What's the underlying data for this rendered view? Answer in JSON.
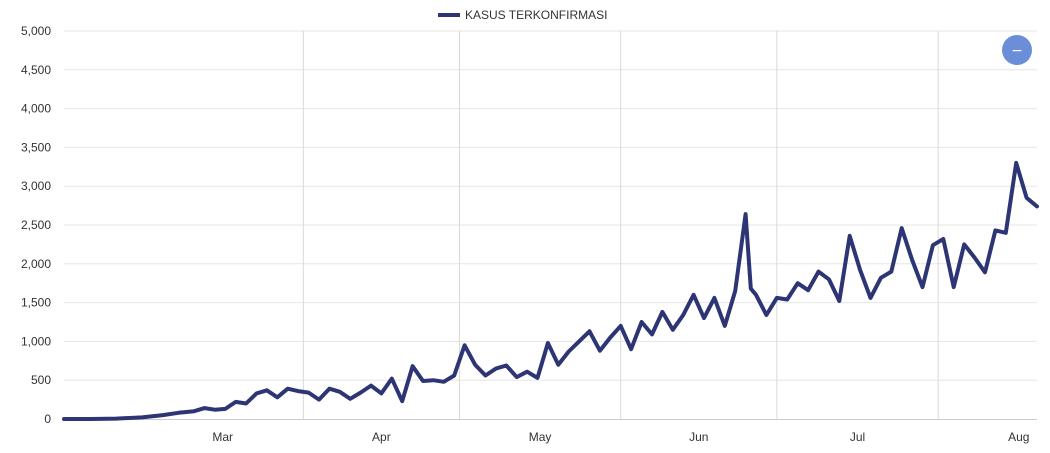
{
  "chart_data": {
    "type": "line",
    "legend": {
      "placement": "top-center",
      "entries": [
        "KASUS TERKONFIRMASI"
      ]
    },
    "series": [
      {
        "name": "KASUS TERKONFIRMASI",
        "color": "#2d3575",
        "x": [
          "2020-02-15",
          "2020-02-20",
          "2020-02-25",
          "2020-03-01",
          "2020-03-05",
          "2020-03-08",
          "2020-03-11",
          "2020-03-13",
          "2020-03-15",
          "2020-03-17",
          "2020-03-19",
          "2020-03-21",
          "2020-03-23",
          "2020-03-25",
          "2020-03-27",
          "2020-03-29",
          "2020-03-31",
          "2020-04-02",
          "2020-04-04",
          "2020-04-06",
          "2020-04-08",
          "2020-04-10",
          "2020-04-12",
          "2020-04-14",
          "2020-04-16",
          "2020-04-18",
          "2020-04-20",
          "2020-04-22",
          "2020-04-24",
          "2020-04-26",
          "2020-04-28",
          "2020-04-30",
          "2020-05-02",
          "2020-05-04",
          "2020-05-06",
          "2020-05-08",
          "2020-05-10",
          "2020-05-12",
          "2020-05-14",
          "2020-05-16",
          "2020-05-18",
          "2020-05-20",
          "2020-05-22",
          "2020-05-24",
          "2020-05-26",
          "2020-05-28",
          "2020-05-30",
          "2020-06-01",
          "2020-06-03",
          "2020-06-05",
          "2020-06-07",
          "2020-06-09",
          "2020-06-11",
          "2020-06-13",
          "2020-06-15",
          "2020-06-17",
          "2020-06-19",
          "2020-06-21",
          "2020-06-23",
          "2020-06-25",
          "2020-06-26",
          "2020-06-27",
          "2020-06-29",
          "2020-07-01",
          "2020-07-03",
          "2020-07-05",
          "2020-07-07",
          "2020-07-09",
          "2020-07-11",
          "2020-07-13",
          "2020-07-15",
          "2020-07-17",
          "2020-07-19",
          "2020-07-21",
          "2020-07-23",
          "2020-07-25",
          "2020-07-27",
          "2020-07-29",
          "2020-07-31",
          "2020-08-02",
          "2020-08-04",
          "2020-08-06",
          "2020-08-08",
          "2020-08-10",
          "2020-08-12",
          "2020-08-14",
          "2020-08-16",
          "2020-08-18",
          "2020-08-20"
        ],
        "values": [
          0,
          0,
          5,
          20,
          50,
          80,
          100,
          140,
          120,
          130,
          220,
          200,
          330,
          370,
          280,
          390,
          360,
          340,
          250,
          390,
          350,
          260,
          340,
          430,
          330,
          520,
          230,
          680,
          490,
          500,
          480,
          560,
          950,
          700,
          560,
          650,
          690,
          540,
          610,
          530,
          980,
          700,
          870,
          1000,
          1130,
          880,
          1050,
          1200,
          900,
          1250,
          1090,
          1380,
          1150,
          1340,
          1600,
          1300,
          1560,
          1200,
          1650,
          2640,
          1680,
          1600,
          1340,
          1560,
          1540,
          1750,
          1660,
          1900,
          1800,
          1520,
          2360,
          1920,
          1560,
          1820,
          1900,
          2460,
          2050,
          1700,
          2240,
          2320,
          1700,
          2250,
          2080,
          1890,
          2430,
          2400,
          3300,
          2850,
          2740
        ],
        "peak_labels_note": ""
      }
    ],
    "xaxis": {
      "range": [
        "2020-02-15",
        "2020-08-20"
      ],
      "ticks": [
        "Mar",
        "Apr",
        "May",
        "Jun",
        "Jul",
        "Aug"
      ]
    },
    "yaxis": {
      "range": [
        0,
        5000
      ],
      "ticks": [
        "0",
        "500",
        "1,000",
        "1,500",
        "2,000",
        "2,500",
        "3,000",
        "3,500",
        "4,000",
        "4,500",
        "5,000"
      ]
    },
    "grid": {
      "horizontal": true,
      "vertical": true
    },
    "title": "",
    "xlabel": "",
    "ylabel": ""
  },
  "controls": {
    "zoom_button_glyph": "−",
    "zoom_button_icon": "minus-icon",
    "zoom_button_color": "#6a8fd8"
  }
}
